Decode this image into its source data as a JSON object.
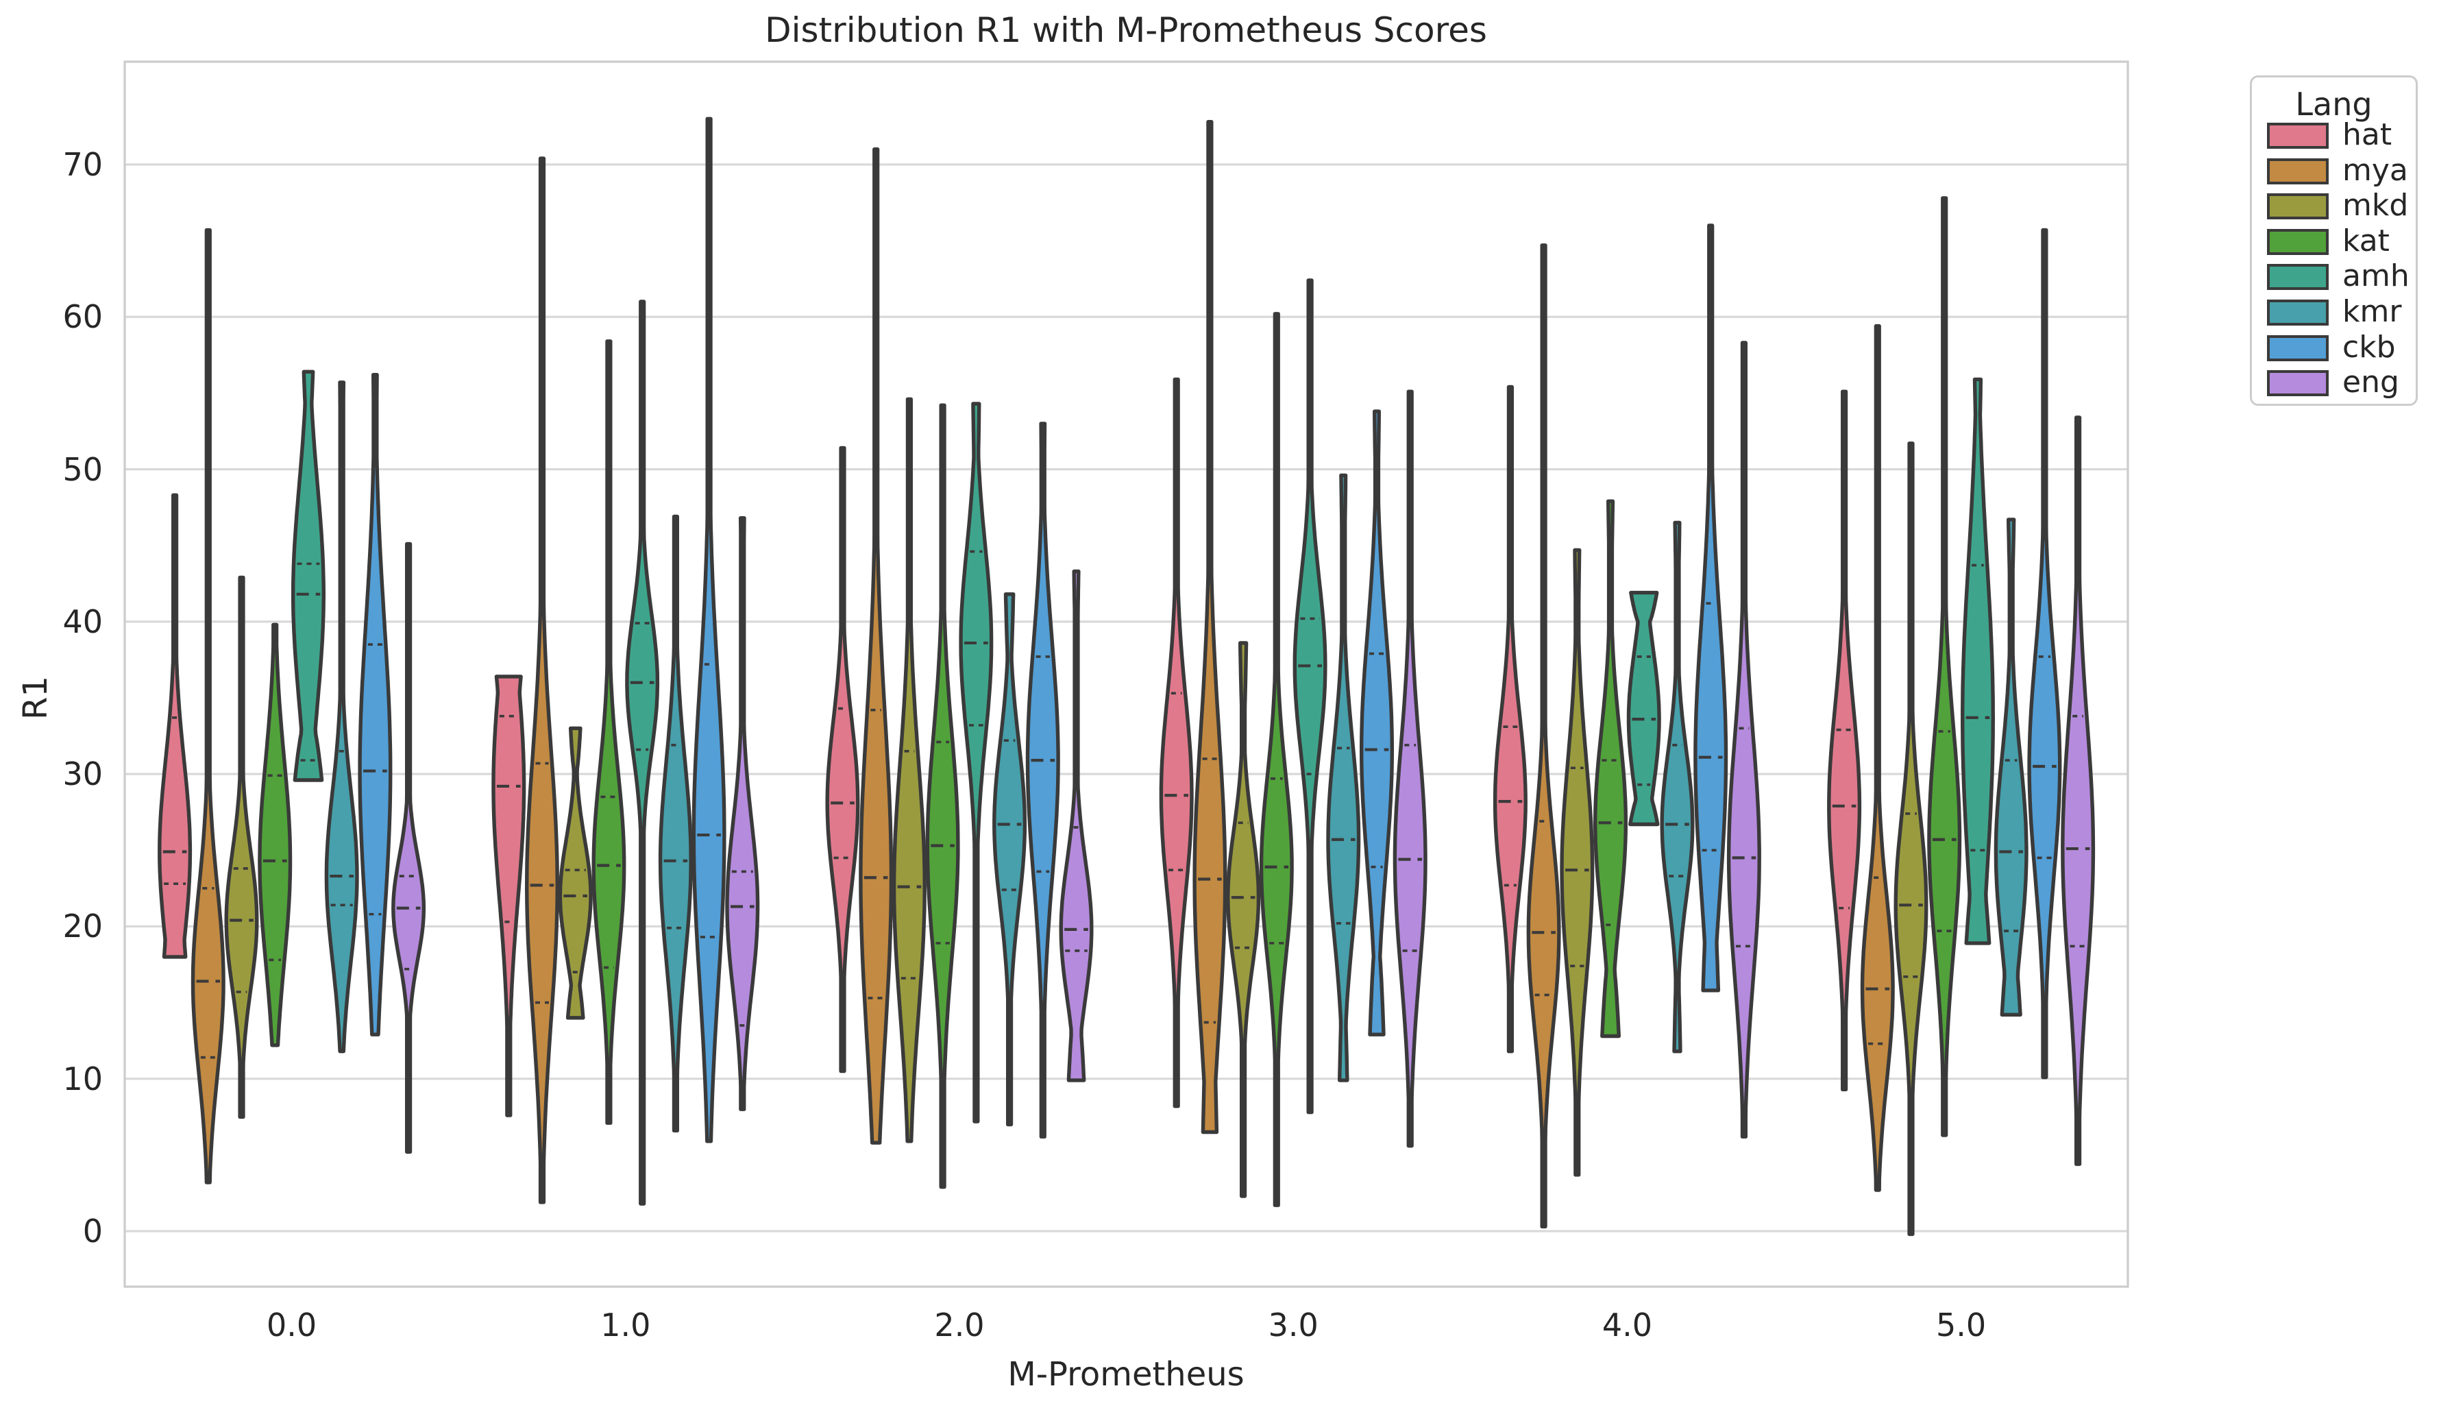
{
  "title": "Distribution R1 with M-Prometheus Scores",
  "axes": {
    "xlabel": "M-Prometheus",
    "ylabel": "R1",
    "xticklabels": [
      "0.0",
      "1.0",
      "2.0",
      "3.0",
      "4.0",
      "5.0"
    ],
    "yticks": [
      0,
      10,
      20,
      30,
      40,
      50,
      60,
      70
    ]
  },
  "legend": {
    "title": "Lang",
    "entries": [
      {
        "label": "hat",
        "color": "#e0798c"
      },
      {
        "label": "mya",
        "color": "#c28a42"
      },
      {
        "label": "mkd",
        "color": "#9a9b3f"
      },
      {
        "label": "kat",
        "color": "#51a23a"
      },
      {
        "label": "amh",
        "color": "#3ea58c"
      },
      {
        "label": "kmr",
        "color": "#47a0ab"
      },
      {
        "label": "ckb",
        "color": "#539fd6"
      },
      {
        "label": "eng",
        "color": "#b58bdd"
      }
    ]
  },
  "style": {
    "edge_color": "#3a3a3a",
    "grid_color": "#d9d9d9",
    "spine_color": "#cccccc",
    "text_color": "#262626",
    "background": "#ffffff"
  },
  "chart_data": {
    "type": "violin",
    "title": "Distribution R1 with M-Prometheus Scores",
    "xlabel": "M-Prometheus",
    "ylabel": "R1",
    "hue": "Lang",
    "inner": "quartiles-dashed",
    "grid": "horizontal",
    "legend_position": "outside-upper-right",
    "ylim": [
      -3.6,
      76.7
    ],
    "x_categories": [
      "0.0",
      "1.0",
      "2.0",
      "3.0",
      "4.0",
      "5.0"
    ],
    "series": [
      {
        "name": "hat",
        "color": "#e0798c",
        "stats": [
          {
            "min": 18.0,
            "q1": 22.8,
            "median": 24.9,
            "q3": 33.7,
            "max": 48.3,
            "cap_bottom": 0.7
          },
          {
            "min": 7.6,
            "q1": 20.3,
            "median": 29.2,
            "q3": 33.8,
            "max": 36.4,
            "cap_top": 0.8
          },
          {
            "min": 10.5,
            "q1": 24.5,
            "median": 28.1,
            "q3": 34.3,
            "max": 51.4,
            "cap_top": 0.1
          },
          {
            "min": 8.2,
            "q1": 23.7,
            "median": 28.6,
            "q3": 35.3,
            "max": 55.9,
            "cap_top": 0.1
          },
          {
            "min": 11.8,
            "q1": 22.7,
            "median": 28.2,
            "q3": 33.1,
            "max": 55.4,
            "cap_top": 0.1
          },
          {
            "min": 9.3,
            "q1": 21.2,
            "median": 27.9,
            "q3": 32.9,
            "max": 55.1,
            "cap_top": 0.1
          }
        ]
      },
      {
        "name": "mya",
        "color": "#c28a42",
        "stats": [
          {
            "min": 3.2,
            "q1": 11.4,
            "median": 16.4,
            "q3": 22.5,
            "max": 65.7
          },
          {
            "min": 1.9,
            "q1": 15.0,
            "median": 22.7,
            "q3": 30.7,
            "max": 70.4
          },
          {
            "min": 5.8,
            "q1": 15.3,
            "median": 23.2,
            "q3": 34.2,
            "max": 71.0
          },
          {
            "min": 6.5,
            "q1": 13.7,
            "median": 23.1,
            "q3": 31.0,
            "max": 72.8,
            "cap_bottom": 0.45
          },
          {
            "min": 0.3,
            "q1": 15.5,
            "median": 19.6,
            "q3": 26.9,
            "max": 64.7
          },
          {
            "min": 2.7,
            "q1": 12.3,
            "median": 15.9,
            "q3": 23.2,
            "max": 59.4
          }
        ]
      },
      {
        "name": "mkd",
        "color": "#9a9b3f",
        "stats": [
          {
            "min": 7.5,
            "q1": 15.7,
            "median": 20.4,
            "q3": 23.8,
            "max": 42.9
          },
          {
            "min": 14.0,
            "q1": 17.0,
            "median": 22.0,
            "q3": 23.7,
            "max": 33.0,
            "cap_top": 0.32,
            "cap_bottom": 0.5
          },
          {
            "min": 5.9,
            "q1": 16.6,
            "median": 22.6,
            "q3": 31.5,
            "max": 54.6,
            "cap_top": 0.1
          },
          {
            "min": 2.3,
            "q1": 18.6,
            "median": 21.9,
            "q3": 26.8,
            "max": 38.6,
            "cap_top": 0.2
          },
          {
            "min": 3.7,
            "q1": 17.4,
            "median": 23.7,
            "q3": 30.4,
            "max": 44.7,
            "cap_top": 0.15
          },
          {
            "min": -0.2,
            "q1": 16.7,
            "median": 21.4,
            "q3": 27.4,
            "max": 51.7,
            "cap_top": 0.1
          }
        ]
      },
      {
        "name": "kat",
        "color": "#51a23a",
        "stats": [
          {
            "min": 12.2,
            "q1": 17.8,
            "median": 24.3,
            "q3": 29.9,
            "max": 39.8
          },
          {
            "min": 7.1,
            "q1": 17.3,
            "median": 24.0,
            "q3": 28.5,
            "max": 58.4
          },
          {
            "min": 2.9,
            "q1": 18.9,
            "median": 25.3,
            "q3": 32.1,
            "max": 54.2,
            "cap_top": 0.1
          },
          {
            "min": 1.7,
            "q1": 18.9,
            "median": 23.9,
            "q3": 29.7,
            "max": 60.2
          },
          {
            "min": 12.8,
            "q1": 20.1,
            "median": 26.8,
            "q3": 30.9,
            "max": 47.9,
            "cap_top": 0.15,
            "cap_bottom": 0.55
          },
          {
            "min": 6.3,
            "q1": 19.7,
            "median": 25.7,
            "q3": 32.8,
            "max": 67.8
          }
        ]
      },
      {
        "name": "amh",
        "color": "#3ea58c",
        "stats": [
          {
            "min": 29.6,
            "q1": 30.9,
            "median": 41.8,
            "q3": 43.8,
            "max": 56.4,
            "cap_top": 0.3,
            "cap_bottom": 0.88
          },
          {
            "min": 1.8,
            "q1": 31.6,
            "median": 36.0,
            "q3": 39.9,
            "max": 61.0
          },
          {
            "min": 7.2,
            "q1": 33.2,
            "median": 38.6,
            "q3": 44.6,
            "max": 54.3,
            "cap_top": 0.2
          },
          {
            "min": 7.8,
            "q1": 30.0,
            "median": 37.1,
            "q3": 40.2,
            "max": 62.4
          },
          {
            "min": 26.7,
            "q1": 29.3,
            "median": 33.6,
            "q3": 37.7,
            "max": 41.9,
            "cap_top": 0.85,
            "cap_bottom": 0.9
          },
          {
            "min": 18.9,
            "q1": 25.0,
            "median": 33.7,
            "q3": 43.7,
            "max": 55.9,
            "cap_top": 0.2,
            "cap_bottom": 0.75
          }
        ]
      },
      {
        "name": "kmr",
        "color": "#47a0ab",
        "stats": [
          {
            "min": 11.8,
            "q1": 21.4,
            "median": 23.3,
            "q3": 31.5,
            "max": 55.7,
            "cap_top": 0.12
          },
          {
            "min": 6.6,
            "q1": 19.9,
            "median": 24.3,
            "q3": 31.9,
            "max": 46.9,
            "cap_top": 0.1
          },
          {
            "min": 7.0,
            "q1": 22.4,
            "median": 26.7,
            "q3": 32.2,
            "max": 41.8,
            "cap_top": 0.25
          },
          {
            "min": 9.9,
            "q1": 20.2,
            "median": 25.7,
            "q3": 31.7,
            "max": 49.6,
            "cap_top": 0.15,
            "cap_bottom": 0.25
          },
          {
            "min": 11.8,
            "q1": 23.3,
            "median": 26.7,
            "q3": 31.9,
            "max": 46.5,
            "cap_top": 0.15,
            "cap_bottom": 0.2
          },
          {
            "min": 14.2,
            "q1": 19.7,
            "median": 24.9,
            "q3": 30.9,
            "max": 46.7,
            "cap_top": 0.18,
            "cap_bottom": 0.6
          }
        ]
      },
      {
        "name": "ckb",
        "color": "#539fd6",
        "stats": [
          {
            "min": 12.9,
            "q1": 20.8,
            "median": 30.2,
            "q3": 38.5,
            "max": 56.2,
            "cap_top": 0.12
          },
          {
            "min": 5.9,
            "q1": 19.3,
            "median": 26.0,
            "q3": 37.2,
            "max": 73.0
          },
          {
            "min": 6.2,
            "q1": 23.6,
            "median": 30.9,
            "q3": 37.7,
            "max": 53.0,
            "cap_top": 0.12
          },
          {
            "min": 12.9,
            "q1": 23.9,
            "median": 31.6,
            "q3": 37.9,
            "max": 53.8,
            "cap_top": 0.15,
            "cap_bottom": 0.45
          },
          {
            "min": 15.8,
            "q1": 25.0,
            "median": 31.1,
            "q3": 41.2,
            "max": 66.0,
            "cap_bottom": 0.5
          },
          {
            "min": 10.1,
            "q1": 24.5,
            "median": 30.5,
            "q3": 37.7,
            "max": 65.7
          }
        ]
      },
      {
        "name": "eng",
        "color": "#b58bdd",
        "stats": [
          {
            "min": 5.2,
            "q1": 17.2,
            "median": 21.2,
            "q3": 23.3,
            "max": 45.1,
            "cap_top": 0.1
          },
          {
            "min": 8.0,
            "q1": 13.5,
            "median": 21.3,
            "q3": 23.6,
            "max": 46.8,
            "cap_top": 0.12
          },
          {
            "min": 9.9,
            "q1": 18.4,
            "median": 19.8,
            "q3": 26.5,
            "max": 43.3,
            "cap_top": 0.15,
            "cap_bottom": 0.5
          },
          {
            "min": 5.6,
            "q1": 18.4,
            "median": 24.4,
            "q3": 31.9,
            "max": 55.1,
            "cap_top": 0.1
          },
          {
            "min": 6.2,
            "q1": 18.7,
            "median": 24.5,
            "q3": 33.0,
            "max": 58.3
          },
          {
            "min": 4.4,
            "q1": 18.7,
            "median": 25.1,
            "q3": 33.8,
            "max": 53.4,
            "cap_top": 0.1
          }
        ]
      }
    ]
  }
}
